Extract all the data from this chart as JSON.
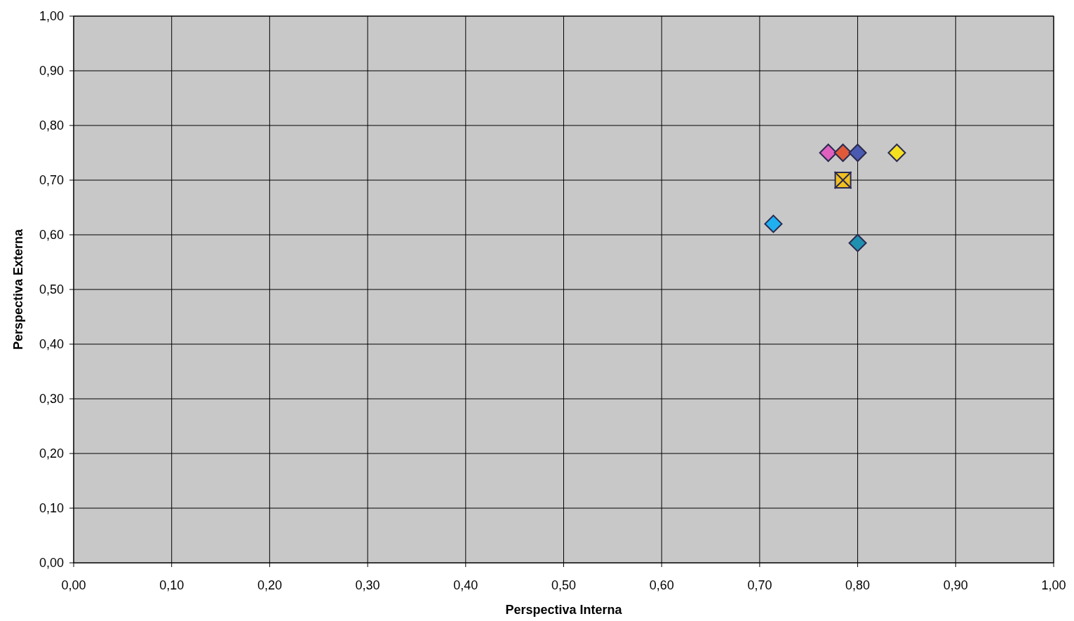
{
  "chart_data": {
    "type": "scatter",
    "xlabel": "Perspectiva Interna",
    "ylabel": "Perspectiva Externa",
    "xlim": [
      0,
      1
    ],
    "ylim": [
      0,
      1
    ],
    "xticks": [
      {
        "value": 0,
        "label": "0,00"
      },
      {
        "value": 0.1,
        "label": "0,10"
      },
      {
        "value": 0.2,
        "label": "0,20"
      },
      {
        "value": 0.3,
        "label": "0,30"
      },
      {
        "value": 0.4,
        "label": "0,40"
      },
      {
        "value": 0.5,
        "label": "0,50"
      },
      {
        "value": 0.6,
        "label": "0,60"
      },
      {
        "value": 0.7,
        "label": "0,70"
      },
      {
        "value": 0.8,
        "label": "0,80"
      },
      {
        "value": 0.9,
        "label": "0,90"
      },
      {
        "value": 1,
        "label": "1,00"
      }
    ],
    "yticks": [
      {
        "value": 0,
        "label": "0,00"
      },
      {
        "value": 0.1,
        "label": "0,10"
      },
      {
        "value": 0.2,
        "label": "0,20"
      },
      {
        "value": 0.3,
        "label": "0,30"
      },
      {
        "value": 0.4,
        "label": "0,40"
      },
      {
        "value": 0.5,
        "label": "0,50"
      },
      {
        "value": 0.6,
        "label": "0,60"
      },
      {
        "value": 0.7,
        "label": "0,70"
      },
      {
        "value": 0.8,
        "label": "0,80"
      },
      {
        "value": 0.9,
        "label": "0,90"
      },
      {
        "value": 1,
        "label": "1,00"
      }
    ],
    "grid": true,
    "marker": "diamond",
    "series": [
      {
        "color": "#e060c0",
        "x": [
          0.77
        ],
        "values": [
          0.75
        ]
      },
      {
        "color": "#e05a3a",
        "x": [
          0.785
        ],
        "values": [
          0.75
        ]
      },
      {
        "color": "#4a5ab0",
        "x": [
          0.8
        ],
        "values": [
          0.75
        ]
      },
      {
        "color": "#f5e020",
        "x": [
          0.84
        ],
        "values": [
          0.75
        ]
      },
      {
        "color": "#f0c020",
        "marker": "square",
        "x": [
          0.785
        ],
        "values": [
          0.7
        ]
      },
      {
        "color": "#2a2a50",
        "marker": "cross",
        "x": [
          0.785
        ],
        "values": [
          0.7
        ]
      },
      {
        "color": "#20b0f0",
        "x": [
          0.714
        ],
        "values": [
          0.62
        ]
      },
      {
        "color": "#2090b0",
        "x": [
          0.8
        ],
        "values": [
          0.585
        ]
      }
    ]
  }
}
